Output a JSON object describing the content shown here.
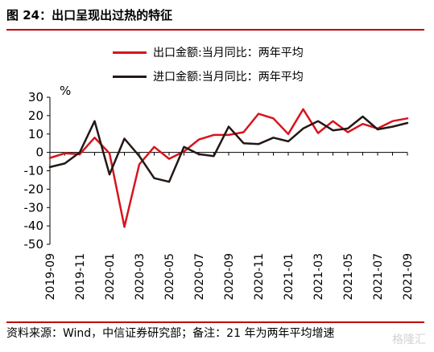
{
  "header": {
    "title": "图 24：出口呈现出过热的特征"
  },
  "footer": {
    "source": "资料来源：Wind，中信证券研究部；备注：21 年为两年平均增速"
  },
  "watermark": "格隆汇",
  "chart_data": {
    "type": "line",
    "unit": "%",
    "x": [
      "2019-09",
      "2019-10",
      "2019-11",
      "2019-12",
      "2020-01",
      "2020-02",
      "2020-03",
      "2020-04",
      "2020-05",
      "2020-06",
      "2020-07",
      "2020-08",
      "2020-09",
      "2020-10",
      "2020-11",
      "2020-12",
      "2021-01",
      "2021-02",
      "2021-03",
      "2021-04",
      "2021-05",
      "2021-06",
      "2021-07",
      "2021-08",
      "2021-09"
    ],
    "xtick_labels": [
      "2019-09",
      "2019-11",
      "2020-01",
      "2020-03",
      "2020-05",
      "2020-07",
      "2020-09",
      "2020-11",
      "2021-01",
      "2021-03",
      "2021-05",
      "2021-07",
      "2021-09"
    ],
    "ylim": [
      -50,
      30
    ],
    "yticks": [
      30,
      20,
      10,
      0,
      -10,
      -20,
      -30,
      -40,
      -50
    ],
    "grid": false,
    "legend_position": "top",
    "series": [
      {
        "name": "出口金额:当月同比：两年平均",
        "color": "#d7141e",
        "values": [
          -3,
          -0.5,
          -1,
          8,
          -0.5,
          -40.5,
          -6.5,
          3,
          -3.5,
          0.5,
          7,
          9.5,
          9.5,
          11,
          21,
          18.5,
          10,
          23.5,
          10.5,
          17,
          11,
          15.5,
          13,
          17,
          18.5
        ]
      },
      {
        "name": "进口金额:当月同比：两年平均",
        "color": "#231815",
        "values": [
          -8,
          -6,
          0,
          17,
          -12,
          7.5,
          -2,
          -14,
          -16,
          3,
          -1,
          -2,
          14,
          5,
          4.5,
          8,
          6,
          13,
          17,
          12,
          13,
          19.5,
          12.5,
          14,
          16
        ]
      }
    ]
  }
}
